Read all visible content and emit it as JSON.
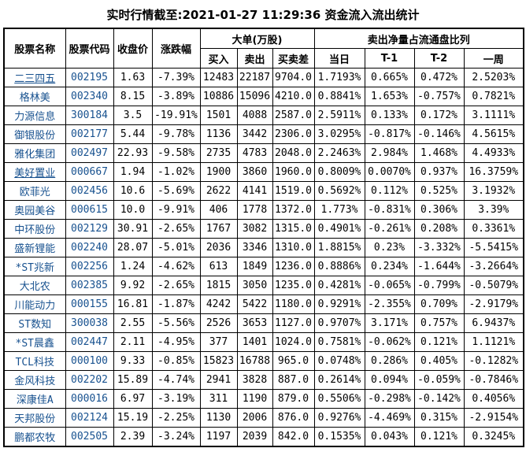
{
  "title": "实时行情截至:2021-01-27 11:29:36 资金流入流出统计",
  "colors": {
    "link_blue": "#17518F",
    "text": "#000000",
    "border": "#000000",
    "background": "#FFFFFF"
  },
  "table": {
    "headers": {
      "stock_name": "股票名称",
      "stock_code": "股票代码",
      "close_price": "收盘价",
      "change_pct": "涨跌幅",
      "big_orders_group": "大单(万股)",
      "buy": "买入",
      "sell": "卖出",
      "diff": "买卖差",
      "net_sell_group": "卖出净量占流通盘比列",
      "day": "当日",
      "t1": "T-1",
      "t2": "T-2",
      "week": "一周"
    },
    "rows": [
      {
        "name": "二三四五",
        "code": "002195",
        "close": "1.63",
        "change": "-7.39%",
        "buy": "12483",
        "sell": "22187",
        "diff": "9704.0",
        "day": "1.7193%",
        "t1": "0.665%",
        "t2": "0.472%",
        "week": "2.5203%",
        "underline": true
      },
      {
        "name": "格林美",
        "code": "002340",
        "close": "8.15",
        "change": "-3.89%",
        "buy": "10886",
        "sell": "15096",
        "diff": "4210.0",
        "day": "0.8841%",
        "t1": "1.653%",
        "t2": "-0.757%",
        "week": "0.7821%",
        "underline": false
      },
      {
        "name": "力源信息",
        "code": "300184",
        "close": "3.5",
        "change": "-19.91%",
        "buy": "1501",
        "sell": "4088",
        "diff": "2587.0",
        "day": "2.5911%",
        "t1": "0.133%",
        "t2": "0.172%",
        "week": "3.1111%",
        "underline": false
      },
      {
        "name": "御银股份",
        "code": "002177",
        "close": "5.44",
        "change": "-9.78%",
        "buy": "1136",
        "sell": "3442",
        "diff": "2306.0",
        "day": "3.0295%",
        "t1": "-0.817%",
        "t2": "-0.146%",
        "week": "4.5615%",
        "underline": false
      },
      {
        "name": "雅化集团",
        "code": "002497",
        "close": "22.93",
        "change": "-9.58%",
        "buy": "2735",
        "sell": "4783",
        "diff": "2048.0",
        "day": "2.2463%",
        "t1": "2.984%",
        "t2": "1.468%",
        "week": "4.4933%",
        "underline": false
      },
      {
        "name": "美好置业",
        "code": "000667",
        "close": "1.94",
        "change": "-1.02%",
        "buy": "1900",
        "sell": "3860",
        "diff": "1960.0",
        "day": "0.8009%",
        "t1": "0.0070%",
        "t2": "0.937%",
        "week": "16.3759%",
        "underline": true
      },
      {
        "name": "欧菲光",
        "code": "002456",
        "close": "10.6",
        "change": "-5.69%",
        "buy": "2622",
        "sell": "4141",
        "diff": "1519.0",
        "day": "0.5692%",
        "t1": "0.112%",
        "t2": "0.525%",
        "week": "3.1932%",
        "underline": false
      },
      {
        "name": "奥园美谷",
        "code": "000615",
        "close": "10.0",
        "change": "-9.91%",
        "buy": "406",
        "sell": "1778",
        "diff": "1372.0",
        "day": "1.773%",
        "t1": "-0.831%",
        "t2": "0.306%",
        "week": "3.39%",
        "underline": false
      },
      {
        "name": "中环股份",
        "code": "002129",
        "close": "30.91",
        "change": "-2.65%",
        "buy": "1767",
        "sell": "3082",
        "diff": "1315.0",
        "day": "0.4901%",
        "t1": "-0.261%",
        "t2": "0.208%",
        "week": "0.3361%",
        "underline": false
      },
      {
        "name": "盛新锂能",
        "code": "002240",
        "close": "28.07",
        "change": "-5.01%",
        "buy": "2036",
        "sell": "3346",
        "diff": "1310.0",
        "day": "1.8815%",
        "t1": "0.23%",
        "t2": "-3.332%",
        "week": "-5.5415%",
        "underline": false
      },
      {
        "name": "*ST兆新",
        "code": "002256",
        "close": "1.24",
        "change": "-4.62%",
        "buy": "613",
        "sell": "1849",
        "diff": "1236.0",
        "day": "0.8886%",
        "t1": "0.234%",
        "t2": "-1.644%",
        "week": "-3.2664%",
        "underline": false
      },
      {
        "name": "大北农",
        "code": "002385",
        "close": "9.92",
        "change": "-2.65%",
        "buy": "1815",
        "sell": "3050",
        "diff": "1235.0",
        "day": "0.4281%",
        "t1": "-0.065%",
        "t2": "-0.799%",
        "week": "-0.5079%",
        "underline": false
      },
      {
        "name": "川能动力",
        "code": "000155",
        "close": "16.81",
        "change": "-1.87%",
        "buy": "4242",
        "sell": "5422",
        "diff": "1180.0",
        "day": "0.9291%",
        "t1": "-2.355%",
        "t2": "0.709%",
        "week": "-2.9179%",
        "underline": false
      },
      {
        "name": "ST数知",
        "code": "300038",
        "close": "2.55",
        "change": "-5.56%",
        "buy": "2526",
        "sell": "3653",
        "diff": "1127.0",
        "day": "0.9707%",
        "t1": "3.171%",
        "t2": "0.757%",
        "week": "6.9437%",
        "underline": false
      },
      {
        "name": "*ST晨鑫",
        "code": "002447",
        "close": "2.11",
        "change": "-4.95%",
        "buy": "377",
        "sell": "1401",
        "diff": "1024.0",
        "day": "0.7581%",
        "t1": "-0.062%",
        "t2": "0.121%",
        "week": "1.1121%",
        "underline": false
      },
      {
        "name": "TCL科技",
        "code": "000100",
        "close": "9.33",
        "change": "-0.85%",
        "buy": "15823",
        "sell": "16788",
        "diff": "965.0",
        "day": "0.0748%",
        "t1": "0.286%",
        "t2": "0.405%",
        "week": "-0.1282%",
        "underline": false
      },
      {
        "name": "金风科技",
        "code": "002202",
        "close": "15.89",
        "change": "-4.74%",
        "buy": "2941",
        "sell": "3828",
        "diff": "887.0",
        "day": "0.2614%",
        "t1": "0.094%",
        "t2": "-0.059%",
        "week": "-0.7846%",
        "underline": false
      },
      {
        "name": "深康佳A",
        "code": "000016",
        "close": "6.97",
        "change": "-3.19%",
        "buy": "311",
        "sell": "1190",
        "diff": "879.0",
        "day": "0.5506%",
        "t1": "-0.298%",
        "t2": "-0.142%",
        "week": "0.4056%",
        "underline": false
      },
      {
        "name": "天邦股份",
        "code": "002124",
        "close": "15.19",
        "change": "-2.25%",
        "buy": "1130",
        "sell": "2006",
        "diff": "876.0",
        "day": "0.9276%",
        "t1": "-4.469%",
        "t2": "0.315%",
        "week": "-2.9154%",
        "underline": false
      },
      {
        "name": "鹏都农牧",
        "code": "002505",
        "close": "2.39",
        "change": "-3.24%",
        "buy": "1197",
        "sell": "2039",
        "diff": "842.0",
        "day": "0.1535%",
        "t1": "0.043%",
        "t2": "0.121%",
        "week": "0.3245%",
        "underline": false
      }
    ]
  }
}
